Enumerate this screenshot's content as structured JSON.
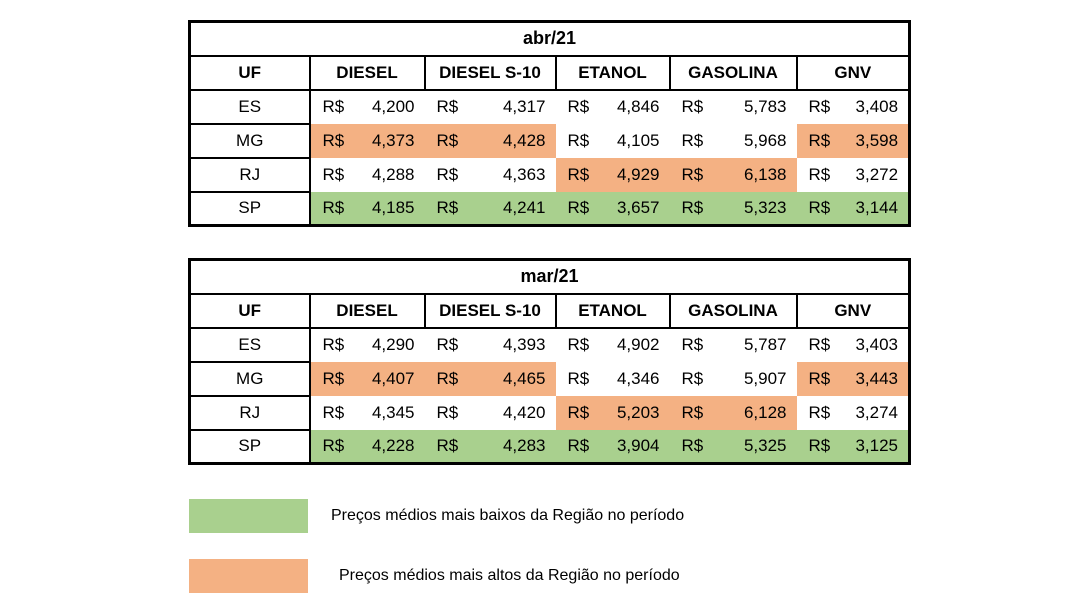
{
  "colors": {
    "low": "#A9D08E",
    "high": "#F4B183",
    "border": "#000000",
    "background": "#ffffff"
  },
  "tables": [
    {
      "title": "abr/21",
      "columns": [
        "UF",
        "DIESEL",
        "DIESEL S-10",
        "ETANOL",
        "GASOLINA",
        "GNV"
      ],
      "rows": [
        {
          "uf": "ES",
          "cells": [
            {
              "currency": "R$",
              "value": "4,200",
              "hl": "none"
            },
            {
              "currency": "R$",
              "value": "4,317",
              "hl": "none"
            },
            {
              "currency": "R$",
              "value": "4,846",
              "hl": "none"
            },
            {
              "currency": "R$",
              "value": "5,783",
              "hl": "none"
            },
            {
              "currency": "R$",
              "value": "3,408",
              "hl": "none"
            }
          ]
        },
        {
          "uf": "MG",
          "cells": [
            {
              "currency": "R$",
              "value": "4,373",
              "hl": "high"
            },
            {
              "currency": "R$",
              "value": "4,428",
              "hl": "high"
            },
            {
              "currency": "R$",
              "value": "4,105",
              "hl": "none"
            },
            {
              "currency": "R$",
              "value": "5,968",
              "hl": "none"
            },
            {
              "currency": "R$",
              "value": "3,598",
              "hl": "high"
            }
          ]
        },
        {
          "uf": "RJ",
          "cells": [
            {
              "currency": "R$",
              "value": "4,288",
              "hl": "none"
            },
            {
              "currency": "R$",
              "value": "4,363",
              "hl": "none"
            },
            {
              "currency": "R$",
              "value": "4,929",
              "hl": "high"
            },
            {
              "currency": "R$",
              "value": "6,138",
              "hl": "high"
            },
            {
              "currency": "R$",
              "value": "3,272",
              "hl": "none"
            }
          ]
        },
        {
          "uf": "SP",
          "cells": [
            {
              "currency": "R$",
              "value": "4,185",
              "hl": "low"
            },
            {
              "currency": "R$",
              "value": "4,241",
              "hl": "low"
            },
            {
              "currency": "R$",
              "value": "3,657",
              "hl": "low"
            },
            {
              "currency": "R$",
              "value": "5,323",
              "hl": "low"
            },
            {
              "currency": "R$",
              "value": "3,144",
              "hl": "low"
            }
          ]
        }
      ]
    },
    {
      "title": "mar/21",
      "columns": [
        "UF",
        "DIESEL",
        "DIESEL S-10",
        "ETANOL",
        "GASOLINA",
        "GNV"
      ],
      "rows": [
        {
          "uf": "ES",
          "cells": [
            {
              "currency": "R$",
              "value": "4,290",
              "hl": "none"
            },
            {
              "currency": "R$",
              "value": "4,393",
              "hl": "none"
            },
            {
              "currency": "R$",
              "value": "4,902",
              "hl": "none"
            },
            {
              "currency": "R$",
              "value": "5,787",
              "hl": "none"
            },
            {
              "currency": "R$",
              "value": "3,403",
              "hl": "none"
            }
          ]
        },
        {
          "uf": "MG",
          "cells": [
            {
              "currency": "R$",
              "value": "4,407",
              "hl": "high"
            },
            {
              "currency": "R$",
              "value": "4,465",
              "hl": "high"
            },
            {
              "currency": "R$",
              "value": "4,346",
              "hl": "none"
            },
            {
              "currency": "R$",
              "value": "5,907",
              "hl": "none"
            },
            {
              "currency": "R$",
              "value": "3,443",
              "hl": "high"
            }
          ]
        },
        {
          "uf": "RJ",
          "cells": [
            {
              "currency": "R$",
              "value": "4,345",
              "hl": "none"
            },
            {
              "currency": "R$",
              "value": "4,420",
              "hl": "none"
            },
            {
              "currency": "R$",
              "value": "5,203",
              "hl": "high"
            },
            {
              "currency": "R$",
              "value": "6,128",
              "hl": "high"
            },
            {
              "currency": "R$",
              "value": "3,274",
              "hl": "none"
            }
          ]
        },
        {
          "uf": "SP",
          "cells": [
            {
              "currency": "R$",
              "value": "4,228",
              "hl": "low"
            },
            {
              "currency": "R$",
              "value": "4,283",
              "hl": "low"
            },
            {
              "currency": "R$",
              "value": "3,904",
              "hl": "low"
            },
            {
              "currency": "R$",
              "value": "5,325",
              "hl": "low"
            },
            {
              "currency": "R$",
              "value": "3,125",
              "hl": "low"
            }
          ]
        }
      ]
    }
  ],
  "legend": [
    {
      "key": "low",
      "color": "#A9D08E",
      "label": "Preços médios mais baixos da Região no período"
    },
    {
      "key": "high",
      "color": "#F4B183",
      "label": "Preços médios mais altos da Região no período"
    }
  ]
}
